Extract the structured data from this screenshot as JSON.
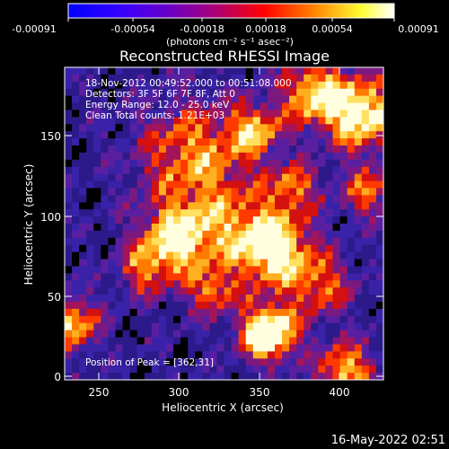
{
  "colorbar": {
    "ticks": [
      "-0.00091",
      "-0.00054",
      "-0.00018",
      "0.00018",
      "0.00054",
      "0.00091"
    ],
    "units": "(photons cm⁻² s⁻¹ asec⁻²)",
    "range": [
      -0.00091,
      0.00091
    ]
  },
  "image": {
    "title": "Reconstructed RHESSI Image",
    "annotations": [
      "18-Nov-2012 00:49:52.000 to 00:51:08.000",
      "Detectors: 3F 5F 6F 7F 8F, Att 0",
      "Energy Range: 12.0 - 25.0 keV",
      "Clean     Total counts: 1.21E+03"
    ],
    "peak_text": "Position of Peak = [362,31]"
  },
  "axes": {
    "xlabel": "Heliocentric X (arcsec)",
    "ylabel": "Heliocentric Y (arcsec)",
    "xticks": [
      "250",
      "300",
      "350",
      "400"
    ],
    "yticks": [
      "0",
      "50",
      "100",
      "150"
    ]
  },
  "footer": {
    "timestamp": "16-May-2022 02:51"
  },
  "colors": {
    "background": "#000000",
    "text": "#ffffff"
  }
}
